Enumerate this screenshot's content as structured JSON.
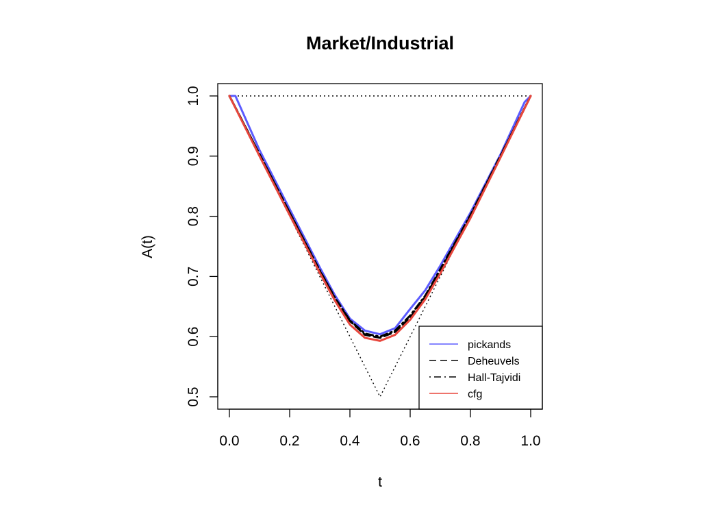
{
  "chart_data": {
    "type": "line",
    "title": "Market/Industrial",
    "xlabel": "t",
    "ylabel": "A(t)",
    "xlim": [
      0,
      1
    ],
    "ylim": [
      0.5,
      1.0
    ],
    "x_ticks": [
      "0.0",
      "0.2",
      "0.4",
      "0.6",
      "0.8",
      "1.0"
    ],
    "y_ticks": [
      "0.5",
      "0.6",
      "0.7",
      "0.8",
      "0.9",
      "1.0"
    ],
    "grid": false,
    "legend_position": "bottom-right",
    "reference_lines": [
      {
        "style": "dotted",
        "x": [
          0,
          1
        ],
        "y": [
          1.0,
          1.0
        ]
      },
      {
        "style": "dotted",
        "x": [
          0,
          0.5,
          1
        ],
        "y": [
          1.0,
          0.5,
          1.0
        ]
      }
    ],
    "series": [
      {
        "name": "pickands",
        "color": "#5b5bff",
        "style": "solid",
        "x": [
          0.0,
          0.02,
          0.1,
          0.2,
          0.3,
          0.35,
          0.4,
          0.45,
          0.5,
          0.55,
          0.6,
          0.65,
          0.7,
          0.8,
          0.9,
          0.98,
          1.0
        ],
        "y": [
          1.0,
          1.0,
          0.91,
          0.812,
          0.715,
          0.669,
          0.63,
          0.61,
          0.604,
          0.614,
          0.646,
          0.677,
          0.718,
          0.806,
          0.903,
          0.99,
          1.0
        ]
      },
      {
        "name": "Deheuvels",
        "color": "#000000",
        "style": "dashed",
        "x": [
          0.0,
          0.1,
          0.2,
          0.3,
          0.35,
          0.4,
          0.45,
          0.5,
          0.55,
          0.6,
          0.65,
          0.7,
          0.8,
          0.9,
          1.0
        ],
        "y": [
          1.0,
          0.903,
          0.806,
          0.709,
          0.664,
          0.626,
          0.603,
          0.598,
          0.608,
          0.632,
          0.666,
          0.71,
          0.8,
          0.9,
          1.0
        ]
      },
      {
        "name": "Hall-Tajvidi",
        "color": "#000000",
        "style": "dotdash",
        "x": [
          0.0,
          0.1,
          0.2,
          0.3,
          0.35,
          0.4,
          0.45,
          0.5,
          0.55,
          0.6,
          0.65,
          0.7,
          0.8,
          0.9,
          1.0
        ],
        "y": [
          1.0,
          0.903,
          0.806,
          0.71,
          0.665,
          0.627,
          0.605,
          0.6,
          0.61,
          0.635,
          0.668,
          0.712,
          0.802,
          0.901,
          1.0
        ]
      },
      {
        "name": "cfg",
        "color": "#e8463c",
        "style": "solid",
        "x": [
          0.0,
          0.1,
          0.2,
          0.3,
          0.35,
          0.4,
          0.45,
          0.5,
          0.55,
          0.6,
          0.65,
          0.7,
          0.8,
          0.9,
          1.0
        ],
        "y": [
          1.0,
          0.9,
          0.802,
          0.706,
          0.66,
          0.62,
          0.598,
          0.593,
          0.603,
          0.628,
          0.662,
          0.705,
          0.797,
          0.898,
          1.0
        ]
      }
    ]
  }
}
